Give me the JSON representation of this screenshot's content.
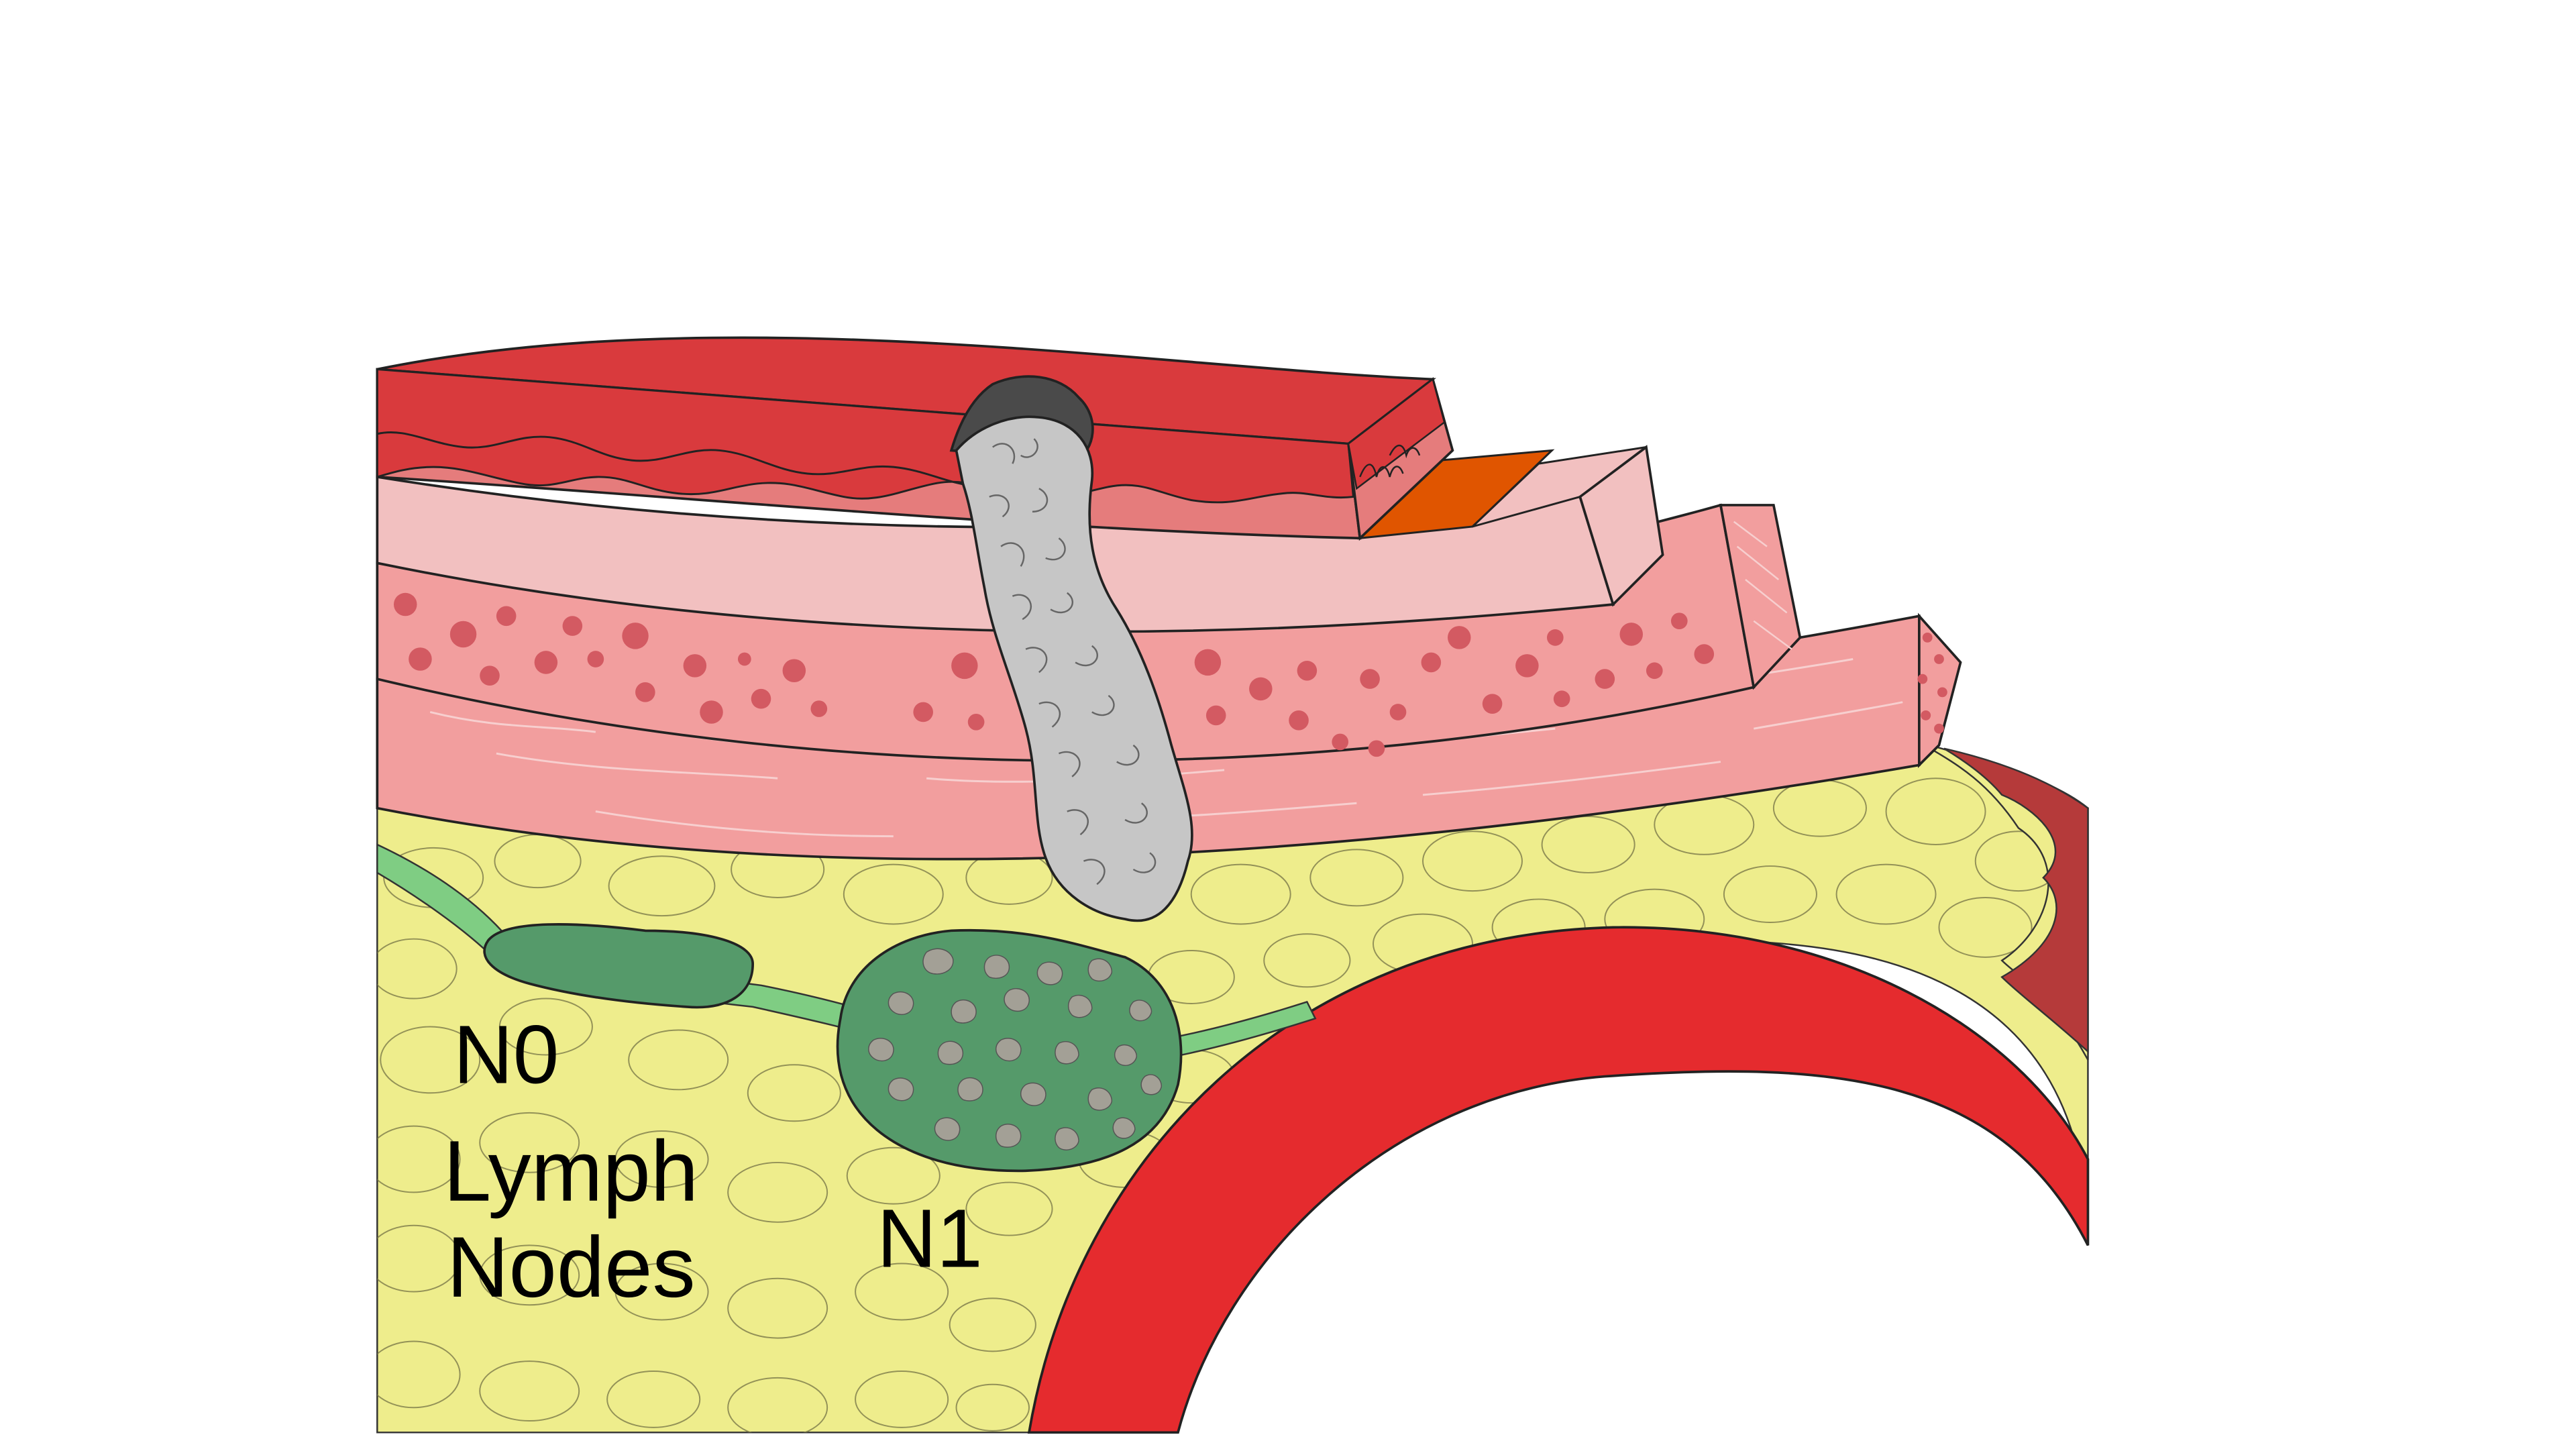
{
  "labels": {
    "n0": "N0",
    "lymph_nodes_line1": "Lymph",
    "lymph_nodes_line2": "Nodes",
    "n1": "N1"
  },
  "colors": {
    "mucosa_red": "#d93a3d",
    "mucosa_light": "#e57c7c",
    "submucosa_pink": "#f2c0c0",
    "muscle_pink": "#f29e9e",
    "dots": "#d35a62",
    "orange_strip": "#e05500",
    "fat_yellow": "#eeed8c",
    "lymph_channel": "#7fcd83",
    "node_green": "#559a6a",
    "tumor_gray": "#c6c6c6",
    "tumor_dark": "#4a4a4a",
    "vessel_red": "#e52b2e",
    "vessel_dark": "#b53a3a"
  },
  "icons": [
    "tumor-shape",
    "lymph-node-n0-shape",
    "lymph-node-n1-shape",
    "blood-vessel-shape"
  ]
}
